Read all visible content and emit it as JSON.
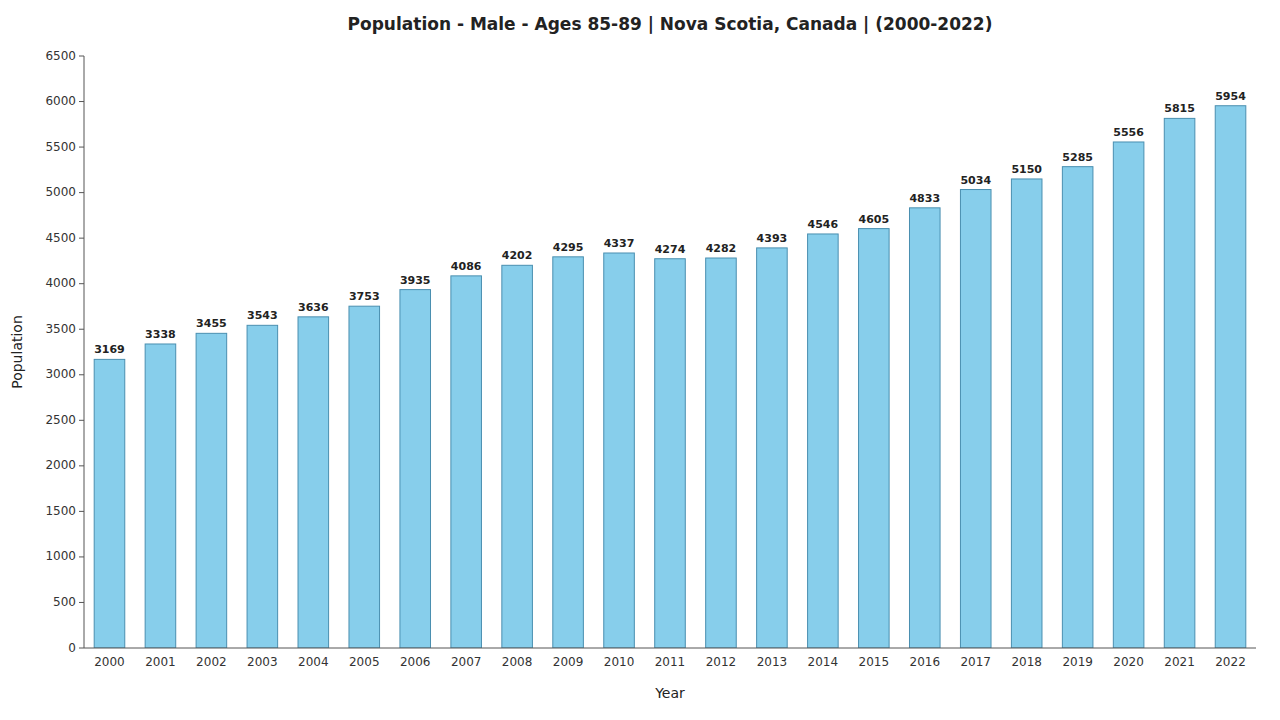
{
  "chart_data": {
    "type": "bar",
    "title": "Population - Male - Ages 85-89 | Nova Scotia, Canada |  (2000-2022)",
    "x_label": "Year",
    "y_label": "Population",
    "categories": [
      "2000",
      "2001",
      "2002",
      "2003",
      "2004",
      "2005",
      "2006",
      "2007",
      "2008",
      "2009",
      "2010",
      "2011",
      "2012",
      "2013",
      "2014",
      "2015",
      "2016",
      "2017",
      "2018",
      "2019",
      "2020",
      "2021",
      "2022"
    ],
    "values": [
      3169,
      3338,
      3455,
      3543,
      3636,
      3753,
      3935,
      4086,
      4202,
      4295,
      4337,
      4274,
      4282,
      4393,
      4546,
      4605,
      4833,
      5034,
      5150,
      5285,
      5556,
      5815,
      5954
    ],
    "color": "#87CEEB",
    "ylim": [
      0,
      6500
    ],
    "yticks": [
      0,
      500,
      1000,
      1500,
      2000,
      2500,
      3000,
      3500,
      4000,
      4500,
      5000,
      5500,
      6000,
      6500
    ],
    "grid": false,
    "data_labels": true
  }
}
